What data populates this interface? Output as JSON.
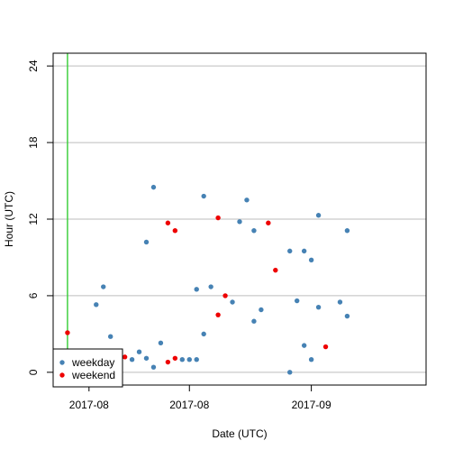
{
  "chart_data": {
    "type": "scatter",
    "title": "",
    "xlabel": "Date (UTC)",
    "ylabel": "Hour (UTC)",
    "xlim": [
      "2017-07-27",
      "2017-09-17"
    ],
    "ylim": [
      -1,
      25
    ],
    "y_ticks": [
      0,
      6,
      12,
      18,
      24
    ],
    "x_ticks": [
      {
        "date": "2017-08-01",
        "label": "2017-08"
      },
      {
        "date": "2017-08-15",
        "label": "2017-08"
      },
      {
        "date": "2017-09-01",
        "label": "2017-09"
      }
    ],
    "grid": "horizontal",
    "marker_line": {
      "date": "2017-07-29",
      "color": "#33cc33"
    },
    "legend": {
      "position": "bottom-left"
    },
    "series": [
      {
        "name": "weekday",
        "color": "#4682b4",
        "points": [
          [
            "2017-08-02",
            5.3
          ],
          [
            "2017-08-03",
            6.7
          ],
          [
            "2017-08-04",
            2.8
          ],
          [
            "2017-08-07",
            1.0
          ],
          [
            "2017-08-08",
            1.6
          ],
          [
            "2017-08-09",
            10.2
          ],
          [
            "2017-08-09",
            1.1
          ],
          [
            "2017-08-10",
            0.4
          ],
          [
            "2017-08-10",
            14.5
          ],
          [
            "2017-08-11",
            2.3
          ],
          [
            "2017-08-14",
            1.0
          ],
          [
            "2017-08-15",
            1.0
          ],
          [
            "2017-08-16",
            1.0
          ],
          [
            "2017-08-16",
            6.5
          ],
          [
            "2017-08-17",
            3.0
          ],
          [
            "2017-08-17",
            13.8
          ],
          [
            "2017-08-18",
            6.7
          ],
          [
            "2017-08-21",
            5.5
          ],
          [
            "2017-08-22",
            11.8
          ],
          [
            "2017-08-23",
            13.5
          ],
          [
            "2017-08-24",
            11.1
          ],
          [
            "2017-08-24",
            4.0
          ],
          [
            "2017-08-25",
            4.9
          ],
          [
            "2017-08-29",
            0.0
          ],
          [
            "2017-08-29",
            9.5
          ],
          [
            "2017-08-30",
            5.6
          ],
          [
            "2017-08-31",
            2.1
          ],
          [
            "2017-08-31",
            9.5
          ],
          [
            "2017-09-01",
            1.0
          ],
          [
            "2017-09-01",
            8.8
          ],
          [
            "2017-09-02",
            12.3
          ],
          [
            "2017-09-02",
            5.1
          ],
          [
            "2017-09-05",
            5.5
          ],
          [
            "2017-09-06",
            11.1
          ],
          [
            "2017-09-06",
            4.4
          ]
        ]
      },
      {
        "name": "weekend",
        "color": "#ee0000",
        "points": [
          [
            "2017-07-29",
            3.1
          ],
          [
            "2017-08-05",
            1.0
          ],
          [
            "2017-08-06",
            1.2
          ],
          [
            "2017-08-12",
            0.8
          ],
          [
            "2017-08-12",
            11.7
          ],
          [
            "2017-08-13",
            11.1
          ],
          [
            "2017-08-13",
            1.1
          ],
          [
            "2017-08-19",
            12.1
          ],
          [
            "2017-08-19",
            4.5
          ],
          [
            "2017-08-20",
            6.0
          ],
          [
            "2017-08-26",
            11.7
          ],
          [
            "2017-08-27",
            8.0
          ],
          [
            "2017-09-03",
            2.0
          ]
        ]
      }
    ]
  }
}
